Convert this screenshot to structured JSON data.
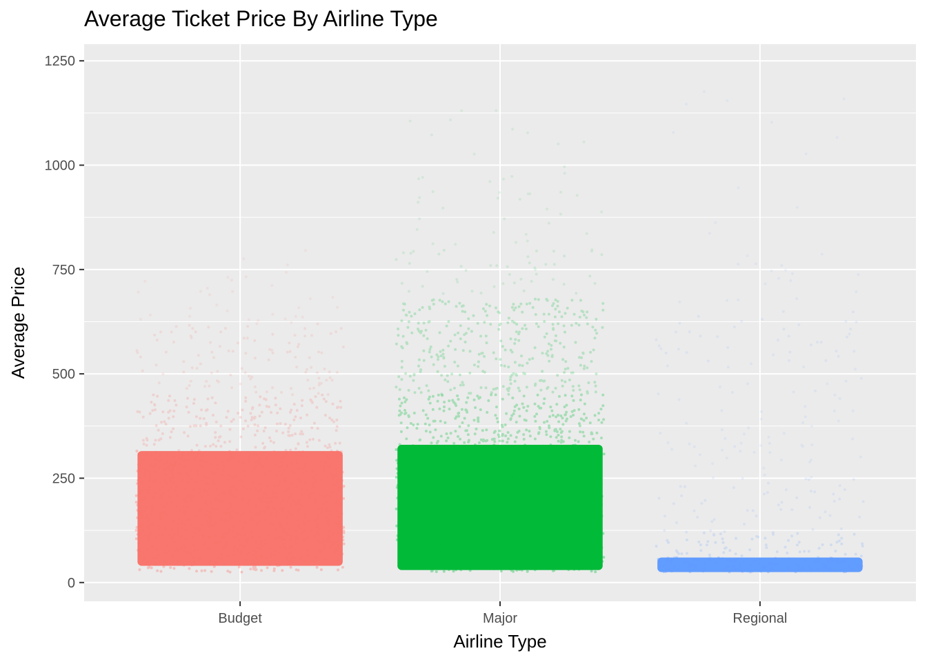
{
  "chart_data": {
    "type": "scatter",
    "title": "Average Ticket Price By Airline Type",
    "xlabel": "Airline Type",
    "ylabel": "Average Price",
    "categories": [
      "Budget",
      "Major",
      "Regional"
    ],
    "ylim": [
      -45,
      1290
    ],
    "yticks": [
      0,
      250,
      500,
      750,
      1000,
      1250
    ],
    "grid": true,
    "legend": "none",
    "jitter_width": 0.8,
    "series": [
      {
        "category": "Budget",
        "color": "#F8766D",
        "point_alpha": 0.05,
        "min": 25,
        "max": 800,
        "dense_range": [
          40,
          315
        ],
        "bands": [
          {
            "from": 25,
            "to": 315,
            "density": 1.0
          },
          {
            "from": 315,
            "to": 450,
            "density": 0.45
          },
          {
            "from": 450,
            "to": 620,
            "density": 0.2
          },
          {
            "from": 620,
            "to": 750,
            "density": 0.07
          },
          {
            "from": 750,
            "to": 800,
            "density": 0.02
          }
        ]
      },
      {
        "category": "Major",
        "color": "#00BA38",
        "point_alpha": 0.05,
        "min": 25,
        "max": 1150,
        "dense_range": [
          30,
          330
        ],
        "bands": [
          {
            "from": 25,
            "to": 330,
            "density": 1.0
          },
          {
            "from": 330,
            "to": 450,
            "density": 0.7
          },
          {
            "from": 450,
            "to": 680,
            "density": 0.45
          },
          {
            "from": 680,
            "to": 800,
            "density": 0.12
          },
          {
            "from": 800,
            "to": 1000,
            "density": 0.05
          },
          {
            "from": 1000,
            "to": 1150,
            "density": 0.02
          }
        ]
      },
      {
        "category": "Regional",
        "color": "#619CFF",
        "point_alpha": 0.05,
        "min": 25,
        "max": 1200,
        "dense_range": [
          25,
          60
        ],
        "bands": [
          {
            "from": 25,
            "to": 60,
            "density": 1.0
          },
          {
            "from": 60,
            "to": 120,
            "density": 0.35
          },
          {
            "from": 120,
            "to": 250,
            "density": 0.12
          },
          {
            "from": 250,
            "to": 530,
            "density": 0.07
          },
          {
            "from": 530,
            "to": 650,
            "density": 0.1
          },
          {
            "from": 650,
            "to": 770,
            "density": 0.04
          },
          {
            "from": 770,
            "to": 1200,
            "density": 0.01
          }
        ]
      }
    ]
  }
}
